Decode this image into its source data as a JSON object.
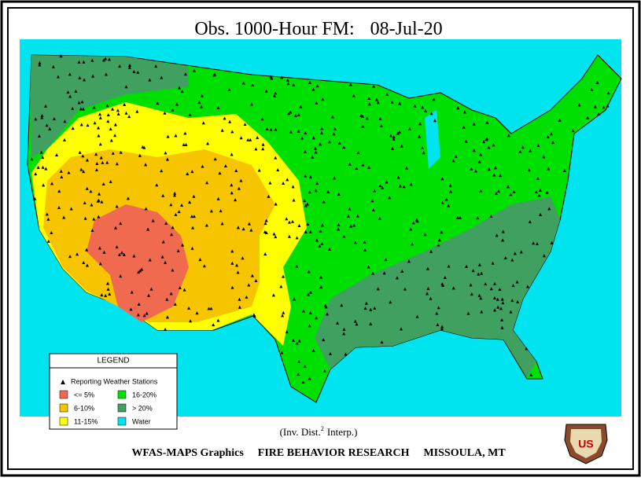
{
  "header": {
    "title": "Obs. 1000-Hour FM:",
    "date": "08-Jul-20"
  },
  "legend": {
    "title": "LEGEND",
    "stations": "Reporting Weather Stations",
    "items": [
      {
        "label": "<= 5%",
        "color": "#f06a50"
      },
      {
        "label": "6-10%",
        "color": "#f7c400"
      },
      {
        "label": "11-15%",
        "color": "#ffff00"
      },
      {
        "label": "16-20%",
        "color": "#00e000"
      },
      {
        "label": "> 20%",
        "color": "#40a060"
      },
      {
        "label": "Water",
        "color": "#00e4f0"
      }
    ]
  },
  "note": {
    "prefix": "(Inv. Dist.",
    "superscript": "2",
    "suffix": "Interp.)"
  },
  "footer": {
    "left": "WFAS-MAPS Graphics",
    "center": "FIRE BEHAVIOR RESEARCH",
    "right": "MISSOULA, MT"
  },
  "badge": {
    "text": "US"
  }
}
